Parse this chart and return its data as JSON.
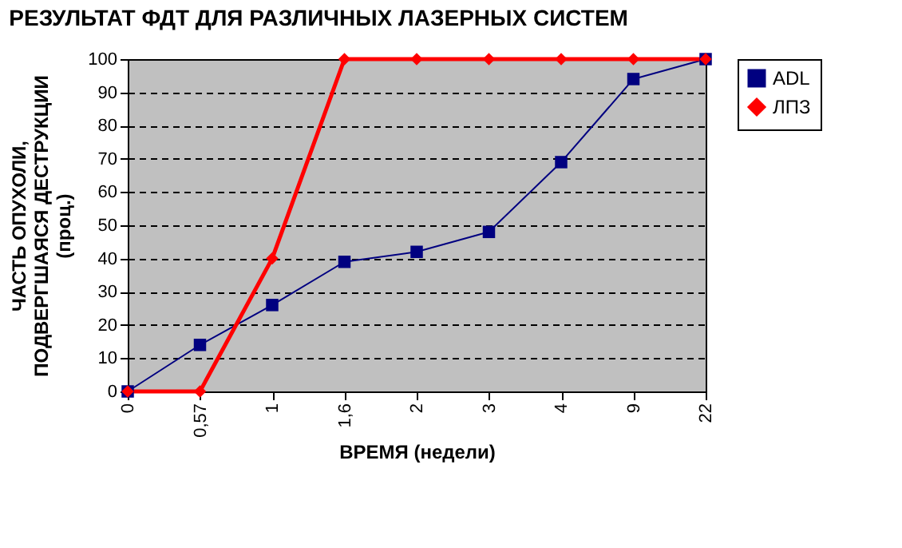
{
  "chart_data": {
    "type": "line",
    "title": "РЕЗУЛЬТАТ ФДТ ДЛЯ РАЗЛИЧНЫХ ЛАЗЕРНЫХ СИСТЕМ",
    "xlabel": "ВРЕМЯ (недели)",
    "ylabel": "ЧАСТЬ ОПУХОЛИ,\nПОДВЕРГШАЯСЯ ДЕСТРУКЦИИ\n(проц.)",
    "categories": [
      "0",
      "0,57",
      "1",
      "1,6",
      "2",
      "3",
      "4",
      "9",
      "22"
    ],
    "series": [
      {
        "name": "ADL",
        "color": "#000080",
        "marker": "square",
        "values": [
          0,
          14,
          26,
          39,
          42,
          48,
          69,
          94,
          100
        ]
      },
      {
        "name": "ЛПЗ",
        "color": "#ff0000",
        "marker": "diamond",
        "values": [
          0,
          0,
          40,
          100,
          100,
          100,
          100,
          100,
          100
        ]
      }
    ],
    "ylim": [
      0,
      100
    ],
    "yticks": [
      0,
      10,
      20,
      30,
      40,
      50,
      60,
      70,
      80,
      90,
      100
    ],
    "grid": "y",
    "legend": "right",
    "line_style": "solid"
  }
}
